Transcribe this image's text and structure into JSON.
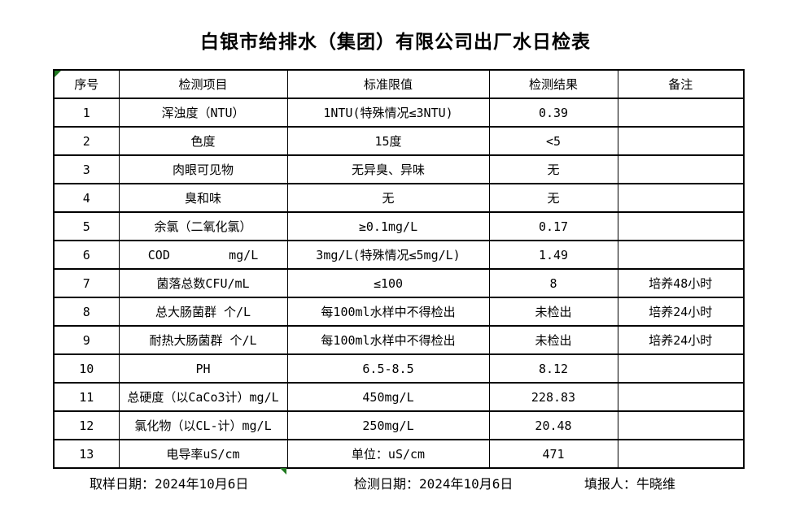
{
  "title": "白银市给排水（集团）有限公司出厂水日检表",
  "table": {
    "headers": [
      "序号",
      "检测项目",
      "标准限值",
      "检测结果",
      "备注"
    ],
    "rows": [
      {
        "no": "1",
        "item": "浑浊度（NTU）",
        "limit": "1NTU(特殊情况≤3NTU)",
        "result": "0.39",
        "remark": ""
      },
      {
        "no": "2",
        "item": "色度",
        "limit": "15度",
        "result": "<5",
        "remark": ""
      },
      {
        "no": "3",
        "item": "肉眼可见物",
        "limit": "无异臭、异味",
        "result": "无",
        "remark": ""
      },
      {
        "no": "4",
        "item": "臭和味",
        "limit": "无",
        "result": "无",
        "remark": ""
      },
      {
        "no": "5",
        "item": "余氯（二氧化氯）",
        "limit": "≥0.1mg/L",
        "result": "0.17",
        "remark": ""
      },
      {
        "no": "6",
        "item": "COD        mg/L",
        "limit": "3mg/L(特殊情况≤5mg/L)",
        "result": "1.49",
        "remark": ""
      },
      {
        "no": "7",
        "item": "菌落总数CFU/mL",
        "limit": "≤100",
        "result": "8",
        "remark": "培养48小时"
      },
      {
        "no": "8",
        "item": "总大肠菌群 个/L",
        "limit": "每100ml水样中不得检出",
        "result": "未检出",
        "remark": "培养24小时"
      },
      {
        "no": "9",
        "item": "耐热大肠菌群 个/L",
        "limit": "每100ml水样中不得检出",
        "result": "未检出",
        "remark": "培养24小时"
      },
      {
        "no": "10",
        "item": "PH",
        "limit": "6.5-8.5",
        "result": "8.12",
        "remark": ""
      },
      {
        "no": "11",
        "item": "总硬度（以CaCo3计）mg/L",
        "limit": "450mg/L",
        "result": "228.83",
        "remark": ""
      },
      {
        "no": "12",
        "item": "氯化物（以CL-计）mg/L",
        "limit": "250mg/L",
        "result": "20.48",
        "remark": ""
      },
      {
        "no": "13",
        "item": "电导率uS/cm",
        "limit": "单位：uS/cm",
        "result": "471",
        "remark": ""
      }
    ]
  },
  "footer": {
    "sample_date": "取样日期：2024年10月6日",
    "test_date": "检测日期：2024年10月6日",
    "filler": "填报人：牛晓维"
  },
  "colors": {
    "table_border": "#000000",
    "marker_green": "#217a21"
  }
}
